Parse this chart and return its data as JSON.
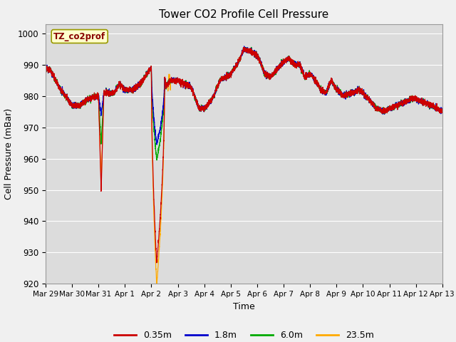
{
  "title": "Tower CO2 Profile Cell Pressure",
  "xlabel": "Time",
  "ylabel": "Cell Pressure (mBar)",
  "ylim": [
    920,
    1003
  ],
  "yticks": [
    920,
    930,
    940,
    950,
    960,
    970,
    980,
    990,
    1000
  ],
  "bg_color": "#dcdcdc",
  "legend_labels": [
    "0.35m",
    "1.8m",
    "6.0m",
    "23.5m"
  ],
  "legend_colors": [
    "#cc0000",
    "#0000cc",
    "#00aa00",
    "#ffaa00"
  ],
  "label_tag": "TZ_co2prof",
  "label_tag_bg": "#ffffcc",
  "label_tag_color": "#880000",
  "x_tick_labels": [
    "Mar 29",
    "Mar 30",
    "Mar 31",
    "Apr 1",
    "Apr 2",
    "Apr 3",
    "Apr 4",
    "Apr 5",
    "Apr 6",
    "Apr 7",
    "Apr 8",
    "Apr 9",
    "Apr 10",
    "Apr 11",
    "Apr 12",
    "Apr 13"
  ],
  "num_points": 4800,
  "total_days": 15
}
